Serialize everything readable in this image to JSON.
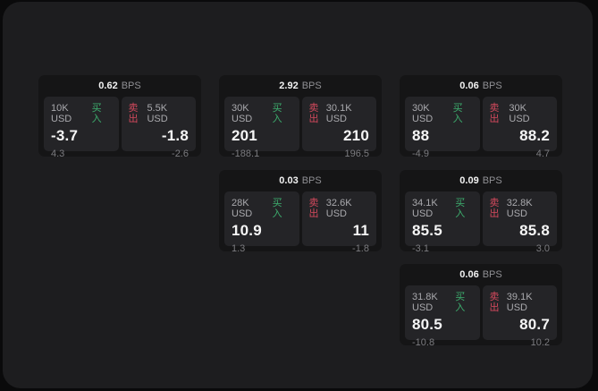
{
  "theme": {
    "background": "#0a0a0b",
    "surface": "#1d1d1f",
    "card": "#151516",
    "panel": "#242427",
    "text_primary": "#f5f5f5",
    "text_secondary": "#a9a9ad",
    "text_dim": "#7c7c80",
    "buy_green": "#3dae6e",
    "sell_red": "#d4495d"
  },
  "labels": {
    "bps": "BPS",
    "buy": "买入",
    "sell": "卖出"
  },
  "cards": [
    {
      "bps": "0.62",
      "buy_amount": "10K USD",
      "buy_value": "-3.7",
      "buy_sub": "4.3",
      "sell_amount": "5.5K USD",
      "sell_value": "-1.8",
      "sell_sub": "-2.6"
    },
    {
      "bps": "2.92",
      "buy_amount": "30K USD",
      "buy_value": "201",
      "buy_sub": "-188.1",
      "sell_amount": "30.1K USD",
      "sell_value": "210",
      "sell_sub": "196.5"
    },
    {
      "bps": "0.06",
      "buy_amount": "30K USD",
      "buy_value": "88",
      "buy_sub": "-4.9",
      "sell_amount": "30K USD",
      "sell_value": "88.2",
      "sell_sub": "4.7"
    },
    {
      "bps": "0.03",
      "buy_amount": "28K USD",
      "buy_value": "10.9",
      "buy_sub": "1.3",
      "sell_amount": "32.6K USD",
      "sell_value": "11",
      "sell_sub": "-1.8"
    },
    {
      "bps": "0.09",
      "buy_amount": "34.1K USD",
      "buy_value": "85.5",
      "buy_sub": "-3.1",
      "sell_amount": "32.8K USD",
      "sell_value": "85.8",
      "sell_sub": "3.0"
    },
    {
      "bps": "0.06",
      "buy_amount": "31.8K USD",
      "buy_value": "80.5",
      "buy_sub": "-10.8",
      "sell_amount": "39.1K USD",
      "sell_value": "80.7",
      "sell_sub": "10.2"
    }
  ]
}
